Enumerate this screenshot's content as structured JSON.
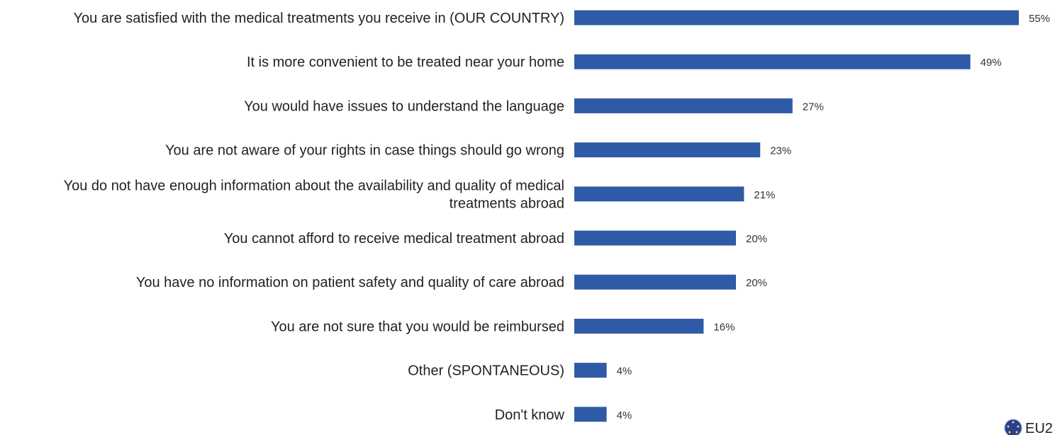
{
  "chart_data": {
    "type": "bar",
    "orientation": "horizontal",
    "categories": [
      "You are satisfied with the medical treatments you receive in (OUR COUNTRY)",
      "It is more convenient to be treated near your home",
      "You would have issues to understand the language",
      "You are not aware of your rights in case things should go wrong",
      "You do not have enough information about the availability and quality of medical treatments abroad",
      "You cannot afford to receive medical treatment abroad",
      "You have no information on patient safety and quality of care abroad",
      "You are not sure that you would be reimbursed",
      "Other (SPONTANEOUS)",
      "Don't know"
    ],
    "category_lines": [
      [
        "You are satisfied with the medical treatments you receive in (OUR COUNTRY)"
      ],
      [
        "It is more convenient to be treated near your home"
      ],
      [
        "You would have issues to understand the language"
      ],
      [
        "You are not aware of your rights in case things should go wrong"
      ],
      [
        "You do not have enough information about the availability and quality of medical",
        "treatments abroad"
      ],
      [
        "You cannot afford to receive medical treatment abroad"
      ],
      [
        "You have no information on patient safety and quality of care abroad"
      ],
      [
        "You are not sure that you would be reimbursed"
      ],
      [
        "Other (SPONTANEOUS)"
      ],
      [
        "Don't know"
      ]
    ],
    "values": [
      55,
      49,
      27,
      23,
      21,
      20,
      20,
      16,
      4,
      4
    ],
    "value_labels": [
      "55%",
      "49%",
      "27%",
      "23%",
      "21%",
      "20%",
      "20%",
      "16%",
      "4%",
      "4%"
    ],
    "value_unit": "%",
    "legend": {
      "label": "EU2",
      "placement": "bottom-right",
      "icon": "eu-flag-icon"
    },
    "grid": false,
    "colors": {
      "bar": "#2f5aa6",
      "text": "#222222"
    }
  }
}
